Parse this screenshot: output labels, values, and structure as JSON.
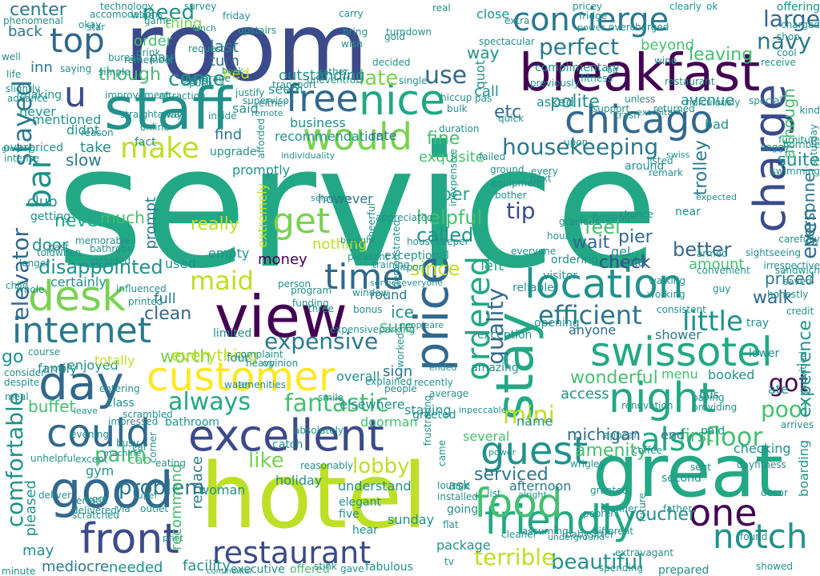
{
  "palette": {
    "dark_purple": "#440154",
    "indigo": "#3b4a8a",
    "blue": "#31688e",
    "teal_blue": "#2a788e",
    "teal": "#21918c",
    "green_teal": "#22a884",
    "green": "#44bf70",
    "light_green": "#7ad151",
    "yellow_green": "#bddf26",
    "yellow": "#fde725"
  },
  "words": [
    {
      "text": "service"
    },
    {
      "text": "room"
    },
    {
      "text": "hotel"
    },
    {
      "text": "great"
    },
    {
      "text": "breakfast"
    },
    {
      "text": "staff"
    },
    {
      "text": "location"
    },
    {
      "text": "view"
    },
    {
      "text": "excellent"
    },
    {
      "text": "good"
    },
    {
      "text": "swissotel"
    },
    {
      "text": "customer"
    },
    {
      "text": "friendly"
    },
    {
      "text": "night"
    },
    {
      "text": "concierge"
    },
    {
      "text": "chicago"
    },
    {
      "text": "charge"
    },
    {
      "text": "stay"
    },
    {
      "text": "price"
    },
    {
      "text": "day"
    },
    {
      "text": "would"
    },
    {
      "text": "food"
    },
    {
      "text": "guest"
    },
    {
      "text": "front"
    },
    {
      "text": "restaurant"
    },
    {
      "text": "free"
    },
    {
      "text": "nice"
    },
    {
      "text": "desk"
    },
    {
      "text": "time"
    },
    {
      "text": "internet"
    },
    {
      "text": "could"
    },
    {
      "text": "one"
    },
    {
      "text": "also"
    },
    {
      "text": "notch"
    },
    {
      "text": "housekeeping"
    },
    {
      "text": "efficient"
    },
    {
      "text": "top"
    },
    {
      "text": "make"
    },
    {
      "text": "ordered"
    },
    {
      "text": "little"
    },
    {
      "text": "quality"
    },
    {
      "text": "expensive"
    },
    {
      "text": "always"
    },
    {
      "text": "get"
    },
    {
      "text": "comfortable"
    },
    {
      "text": "perfect"
    },
    {
      "text": "bar"
    },
    {
      "text": "maid"
    },
    {
      "text": "fantastic"
    },
    {
      "text": "lobby"
    },
    {
      "text": "floor"
    },
    {
      "text": "pool"
    },
    {
      "text": "got"
    },
    {
      "text": "mini"
    },
    {
      "text": "like"
    },
    {
      "text": "stayed"
    },
    {
      "text": "elevator"
    },
    {
      "text": "disappointed"
    },
    {
      "text": "beautiful"
    },
    {
      "text": "problem"
    },
    {
      "text": "palm"
    },
    {
      "text": "tip"
    },
    {
      "text": "fine"
    },
    {
      "text": "need"
    },
    {
      "text": "center"
    },
    {
      "text": "large"
    },
    {
      "text": "navy"
    },
    {
      "text": "u"
    },
    {
      "text": "use"
    },
    {
      "text": "late"
    },
    {
      "text": "come"
    },
    {
      "text": "etc"
    },
    {
      "text": "polite"
    },
    {
      "text": "experience"
    },
    {
      "text": "even"
    },
    {
      "text": "clean"
    },
    {
      "text": "check"
    },
    {
      "text": "wonderful"
    },
    {
      "text": "worth"
    },
    {
      "text": "called"
    },
    {
      "text": "helpful"
    },
    {
      "text": "since"
    },
    {
      "text": "first"
    },
    {
      "text": "voucher"
    },
    {
      "text": "amenity"
    },
    {
      "text": "michigan"
    },
    {
      "text": "terrible"
    },
    {
      "text": "access"
    },
    {
      "text": "walk"
    },
    {
      "text": "serviced"
    },
    {
      "text": "buffet"
    },
    {
      "text": "leaving"
    },
    {
      "text": "avenue"
    },
    {
      "text": "although"
    },
    {
      "text": "though"
    },
    {
      "text": "business"
    },
    {
      "text": "recommendation"
    },
    {
      "text": "rate"
    },
    {
      "text": "exquisite"
    },
    {
      "text": "slow"
    },
    {
      "text": "club"
    },
    {
      "text": "never"
    },
    {
      "text": "door"
    },
    {
      "text": "much"
    },
    {
      "text": "really"
    },
    {
      "text": "money"
    },
    {
      "text": "however"
    },
    {
      "text": "nothing"
    },
    {
      "text": "per"
    },
    {
      "text": "feel"
    },
    {
      "text": "wait"
    },
    {
      "text": "pier"
    },
    {
      "text": "better"
    },
    {
      "text": "amount"
    },
    {
      "text": "priced"
    },
    {
      "text": "personnel"
    },
    {
      "text": "suite"
    },
    {
      "text": "trolley"
    },
    {
      "text": "shower"
    },
    {
      "text": "anyone"
    },
    {
      "text": "left"
    },
    {
      "text": "round"
    },
    {
      "text": "ice"
    },
    {
      "text": "sure"
    },
    {
      "text": "sign"
    },
    {
      "text": "staying"
    },
    {
      "text": "name"
    },
    {
      "text": "several"
    },
    {
      "text": "afternoon"
    },
    {
      "text": "ask"
    },
    {
      "text": "going"
    },
    {
      "text": "package"
    },
    {
      "text": "fabulous"
    },
    {
      "text": "offered"
    },
    {
      "text": "executive"
    },
    {
      "text": "needed"
    },
    {
      "text": "facility"
    },
    {
      "text": "mediocre"
    },
    {
      "text": "may"
    },
    {
      "text": "pleased"
    },
    {
      "text": "replace"
    },
    {
      "text": "recommend"
    },
    {
      "text": "woman"
    },
    {
      "text": "cab"
    },
    {
      "text": "everything"
    },
    {
      "text": "go"
    },
    {
      "text": "full"
    },
    {
      "text": "used"
    },
    {
      "text": "certainly"
    },
    {
      "text": "extremely"
    },
    {
      "text": "prompt"
    },
    {
      "text": "find"
    },
    {
      "text": "take"
    },
    {
      "text": "said"
    },
    {
      "text": "last"
    },
    {
      "text": "turn"
    },
    {
      "text": "order"
    },
    {
      "text": "thing"
    },
    {
      "text": "pay"
    },
    {
      "text": "inn"
    },
    {
      "text": "back"
    },
    {
      "text": "bed"
    },
    {
      "text": "outstanding"
    },
    {
      "text": "way"
    },
    {
      "text": "call"
    },
    {
      "text": "asked"
    },
    {
      "text": "gel"
    },
    {
      "text": "told"
    },
    {
      "text": "around"
    },
    {
      "text": "near"
    },
    {
      "text": "menu"
    },
    {
      "text": "booked"
    },
    {
      "text": "ate"
    },
    {
      "text": "end"
    },
    {
      "text": "checking"
    },
    {
      "text": "boarding"
    },
    {
      "text": "second"
    },
    {
      "text": "bus"
    },
    {
      "text": "complimentary"
    },
    {
      "text": "beyond"
    },
    {
      "text": "close"
    },
    {
      "text": "bad"
    },
    {
      "text": "quot"
    },
    {
      "text": "overall"
    },
    {
      "text": "elsewhere"
    },
    {
      "text": "catch"
    },
    {
      "text": "holiday"
    },
    {
      "text": "understand"
    },
    {
      "text": "elegant"
    },
    {
      "text": "five"
    },
    {
      "text": "hear"
    },
    {
      "text": "sunday"
    },
    {
      "text": "promptly"
    },
    {
      "text": "four"
    },
    {
      "text": "empty"
    },
    {
      "text": "gym"
    },
    {
      "text": "unhelpful"
    },
    {
      "text": "enjoyed"
    },
    {
      "text": "family"
    },
    {
      "text": "totally"
    },
    {
      "text": "never"
    },
    {
      "text": "overpriced"
    },
    {
      "text": "didnt"
    },
    {
      "text": "making"
    },
    {
      "text": "advance"
    },
    {
      "text": "mentioned"
    },
    {
      "text": "seem"
    },
    {
      "text": "upgrade"
    },
    {
      "text": "fact"
    },
    {
      "text": "limited"
    },
    {
      "text": "bathroom"
    },
    {
      "text": "doorman"
    },
    {
      "text": "reasonably"
    },
    {
      "text": "exceptional"
    },
    {
      "text": "greeted"
    },
    {
      "text": "amazing"
    },
    {
      "text": "exception"
    },
    {
      "text": "opening"
    },
    {
      "text": "ordering"
    },
    {
      "text": "visitor"
    },
    {
      "text": "reliable"
    },
    {
      "text": "paid"
    },
    {
      "text": "tray"
    },
    {
      "text": "credit"
    },
    {
      "text": "lower"
    },
    {
      "text": "provided"
    },
    {
      "text": "arrives"
    },
    {
      "text": "dayfitness"
    },
    {
      "text": "decor"
    },
    {
      "text": "found"
    },
    {
      "text": "showed"
    },
    {
      "text": "prepared"
    },
    {
      "text": "spending"
    },
    {
      "text": "extravagant"
    },
    {
      "text": "different"
    },
    {
      "text": "gave"
    },
    {
      "text": "stink"
    },
    {
      "text": "minute"
    },
    {
      "text": "continental"
    },
    {
      "text": "absolutely"
    },
    {
      "text": "impressed"
    },
    {
      "text": "class"
    },
    {
      "text": "entering"
    },
    {
      "text": "scrambled"
    },
    {
      "text": "consider"
    },
    {
      "text": "despite"
    },
    {
      "text": "course"
    },
    {
      "text": "whole"
    },
    {
      "text": "past"
    },
    {
      "text": "toldwhen"
    },
    {
      "text": "getting"
    },
    {
      "text": "greeting"
    },
    {
      "text": "slightly"
    },
    {
      "text": "life"
    },
    {
      "text": "well"
    },
    {
      "text": "phenomenal"
    },
    {
      "text": "real"
    },
    {
      "text": "offering"
    },
    {
      "text": "spectacular"
    },
    {
      "text": "pas"
    },
    {
      "text": "duration"
    },
    {
      "text": "inexpensive"
    },
    {
      "text": "cheerful"
    },
    {
      "text": "pleasant"
    },
    {
      "text": "training"
    },
    {
      "text": "airport"
    },
    {
      "text": "housekeeper"
    },
    {
      "text": "appreciated"
    },
    {
      "text": "demonstrated"
    },
    {
      "text": "upon"
    },
    {
      "text": "three"
    },
    {
      "text": "complaint"
    },
    {
      "text": "expensiveparking"
    },
    {
      "text": "funding"
    },
    {
      "text": "smile"
    },
    {
      "text": "worked"
    },
    {
      "text": "people"
    },
    {
      "text": "explained"
    },
    {
      "text": "recently"
    },
    {
      "text": "frustrating"
    },
    {
      "text": "average"
    },
    {
      "text": "came"
    },
    {
      "text": "lounge"
    },
    {
      "text": "installed"
    },
    {
      "text": "flat"
    },
    {
      "text": "tv"
    },
    {
      "text": "list"
    },
    {
      "text": "cleaner"
    },
    {
      "text": "assuming"
    },
    {
      "text": "babysitter"
    },
    {
      "text": "wrigley"
    },
    {
      "text": "poorer"
    },
    {
      "text": "manner"
    },
    {
      "text": "granted"
    },
    {
      "text": "future"
    },
    {
      "text": "father"
    },
    {
      "text": "sent"
    },
    {
      "text": "coffee"
    },
    {
      "text": "appear"
    },
    {
      "text": "renovation"
    },
    {
      "text": "paying"
    },
    {
      "text": "providing"
    },
    {
      "text": "walking"
    },
    {
      "text": "working"
    },
    {
      "text": "consistent"
    },
    {
      "text": "convenient"
    },
    {
      "text": "armed"
    },
    {
      "text": "guy"
    },
    {
      "text": "sightseeing"
    },
    {
      "text": "irrespective"
    },
    {
      "text": "sandwich"
    },
    {
      "text": "saved"
    },
    {
      "text": "honestly"
    },
    {
      "text": "carefully"
    },
    {
      "text": "ground"
    },
    {
      "text": "equipment"
    },
    {
      "text": "bother"
    },
    {
      "text": "everyone"
    },
    {
      "text": "hour"
    },
    {
      "text": "gracious"
    },
    {
      "text": "housing"
    },
    {
      "text": "chance"
    },
    {
      "text": "listed"
    },
    {
      "text": "remark"
    },
    {
      "text": "next"
    },
    {
      "text": "every"
    },
    {
      "text": "failed"
    },
    {
      "text": "window"
    },
    {
      "text": "bonus"
    },
    {
      "text": "program"
    },
    {
      "text": "person"
    },
    {
      "text": "opinion"
    },
    {
      "text": "heavy"
    },
    {
      "text": "amenities"
    },
    {
      "text": "water"
    },
    {
      "text": "bathrobe"
    },
    {
      "text": "included"
    },
    {
      "text": "memorable"
    },
    {
      "text": "longer"
    },
    {
      "text": "child"
    },
    {
      "text": "influenced"
    },
    {
      "text": "printed"
    },
    {
      "text": "meal"
    },
    {
      "text": "eating"
    },
    {
      "text": "corner"
    },
    {
      "text": "car"
    },
    {
      "text": "busy"
    },
    {
      "text": "evening"
    },
    {
      "text": "except"
    },
    {
      "text": "via"
    },
    {
      "text": "outlet"
    },
    {
      "text": "worn"
    },
    {
      "text": "deliver"
    },
    {
      "text": "delivered"
    },
    {
      "text": "scratched"
    },
    {
      "text": "erratic"
    },
    {
      "text": "push"
    },
    {
      "text": "justify"
    },
    {
      "text": "supervisor"
    },
    {
      "text": "improvement"
    },
    {
      "text": "straightaway"
    },
    {
      "text": "reason"
    },
    {
      "text": "intense"
    },
    {
      "text": "away"
    },
    {
      "text": "online"
    },
    {
      "text": "stand"
    },
    {
      "text": "attraction"
    },
    {
      "text": "extra"
    },
    {
      "text": "previously"
    },
    {
      "text": "gold"
    },
    {
      "text": "turndown"
    },
    {
      "text": "bring"
    },
    {
      "text": "wish"
    },
    {
      "text": "upstairs"
    },
    {
      "text": "carry"
    },
    {
      "text": "friday"
    },
    {
      "text": "survey"
    },
    {
      "text": "technology"
    },
    {
      "text": "accomodations"
    },
    {
      "text": "star"
    },
    {
      "text": "okay"
    },
    {
      "text": "clearly"
    },
    {
      "text": "ok"
    },
    {
      "text": "pricey"
    },
    {
      "text": "fridge"
    },
    {
      "text": "overcharged"
    },
    {
      "text": "shop"
    },
    {
      "text": "charged"
    },
    {
      "text": "cool"
    },
    {
      "text": "receive"
    },
    {
      "text": "special"
    },
    {
      "text": "kind"
    },
    {
      "text": "saturday"
    },
    {
      "text": "horrible"
    },
    {
      "text": "swimming"
    },
    {
      "text": "soggy"
    },
    {
      "text": "furniture"
    },
    {
      "text": "restaurant"
    },
    {
      "text": "returned"
    },
    {
      "text": "ridiculously"
    },
    {
      "text": "unless"
    },
    {
      "text": "trash"
    },
    {
      "text": "support"
    },
    {
      "text": "fitness"
    },
    {
      "text": "wine"
    },
    {
      "text": "single"
    },
    {
      "text": "bulk"
    },
    {
      "text": "hiccup"
    },
    {
      "text": "quick"
    },
    {
      "text": "inside"
    },
    {
      "text": "afforded"
    },
    {
      "text": "either"
    },
    {
      "text": "transport"
    },
    {
      "text": "uneventful"
    },
    {
      "text": "decided"
    },
    {
      "text": "rather"
    },
    {
      "text": "beverage"
    },
    {
      "text": "request"
    },
    {
      "text": "remember"
    },
    {
      "text": "wine"
    },
    {
      "text": "saying"
    },
    {
      "text": "simple"
    },
    {
      "text": "bureau"
    },
    {
      "text": "game"
    },
    {
      "text": "drink"
    },
    {
      "text": "mom"
    },
    {
      "text": "leave"
    },
    {
      "text": "machine"
    },
    {
      "text": "super"
    },
    {
      "text": "print"
    },
    {
      "text": "lunch"
    },
    {
      "text": "book"
    },
    {
      "text": "remote"
    },
    {
      "text": "individuality"
    },
    {
      "text": "selection"
    },
    {
      "text": "brought"
    },
    {
      "text": "serviceeveryone"
    },
    {
      "text": "peopleare"
    },
    {
      "text": "ended"
    },
    {
      "text": "inpeccable"
    },
    {
      "text": "power"
    },
    {
      "text": "alright"
    },
    {
      "text": "underground"
    },
    {
      "text": "power"
    },
    {
      "text": "bit"
    },
    {
      "text": "exorbitant"
    },
    {
      "text": "swiss"
    },
    {
      "text": "expected"
    }
  ]
}
